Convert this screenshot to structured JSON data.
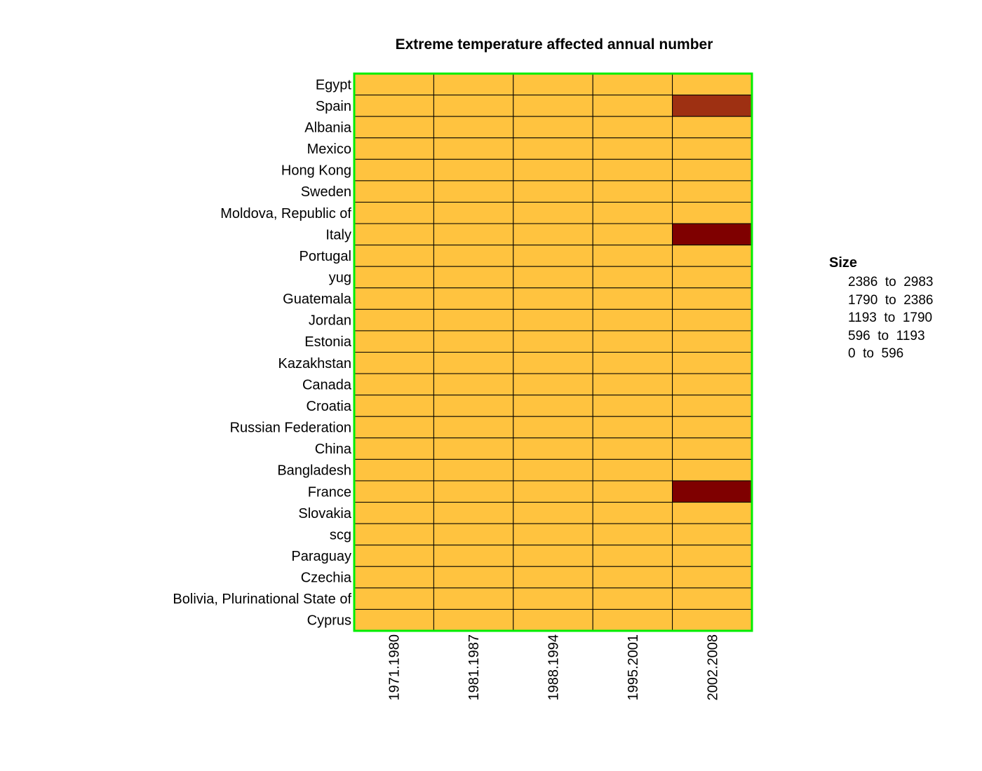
{
  "chart_data": {
    "type": "heatmap",
    "title": "Extreme temperature affected annual number",
    "xlabel": "",
    "ylabel": "",
    "x": [
      "1971.1980",
      "1981.1987",
      "1988.1994",
      "1995.2001",
      "2002.2008"
    ],
    "y": [
      "Egypt",
      "Spain",
      "Albania",
      "Mexico",
      "Hong Kong",
      "Sweden",
      "Moldova, Republic of",
      "Italy",
      "Portugal",
      "yug",
      "Guatemala",
      "Jordan",
      "Estonia",
      "Kazakhstan",
      "Canada",
      "Croatia",
      "Russian Federation",
      "China",
      "Bangladesh",
      "France",
      "Slovakia",
      "scg",
      "Paraguay",
      "Czechia",
      "Bolivia, Plurinational State of",
      "Cyprus"
    ],
    "values": [
      [
        0,
        0,
        0,
        0,
        0
      ],
      [
        0,
        0,
        0,
        0,
        2100
      ],
      [
        0,
        0,
        0,
        0,
        0
      ],
      [
        0,
        0,
        0,
        0,
        0
      ],
      [
        0,
        0,
        0,
        0,
        0
      ],
      [
        0,
        0,
        0,
        0,
        0
      ],
      [
        0,
        0,
        0,
        0,
        0
      ],
      [
        0,
        0,
        0,
        0,
        2983
      ],
      [
        0,
        0,
        0,
        0,
        0
      ],
      [
        0,
        0,
        0,
        0,
        0
      ],
      [
        0,
        0,
        0,
        0,
        0
      ],
      [
        0,
        0,
        0,
        0,
        0
      ],
      [
        0,
        0,
        0,
        0,
        0
      ],
      [
        0,
        0,
        0,
        0,
        0
      ],
      [
        0,
        0,
        0,
        0,
        0
      ],
      [
        0,
        0,
        0,
        0,
        0
      ],
      [
        0,
        0,
        0,
        0,
        0
      ],
      [
        0,
        0,
        0,
        0,
        0
      ],
      [
        0,
        0,
        0,
        0,
        0
      ],
      [
        0,
        0,
        0,
        0,
        2800
      ],
      [
        0,
        0,
        0,
        0,
        0
      ],
      [
        0,
        0,
        0,
        0,
        0
      ],
      [
        0,
        0,
        0,
        0,
        0
      ],
      [
        0,
        0,
        0,
        0,
        0
      ],
      [
        0,
        0,
        0,
        0,
        0
      ],
      [
        0,
        0,
        0,
        0,
        0
      ]
    ],
    "legend": {
      "title": "Size",
      "bins": [
        {
          "label": "2386  to  2983",
          "min": 2386,
          "max": 2983,
          "color": "#7F0000"
        },
        {
          "label": "1790  to  2386",
          "min": 1790,
          "max": 2386,
          "color": "#9E3012"
        },
        {
          "label": "1193  to  1790",
          "min": 1193,
          "max": 1790,
          "color": "#BE6024"
        },
        {
          "label": "596  to  1193",
          "min": 596,
          "max": 1193,
          "color": "#DE9036"
        },
        {
          "label": "0  to  596",
          "min": 0,
          "max": 596,
          "color": "#FFC33F"
        }
      ],
      "placement": "right"
    },
    "frame_color": "#00EE00",
    "cell_border_color": "#000000"
  }
}
